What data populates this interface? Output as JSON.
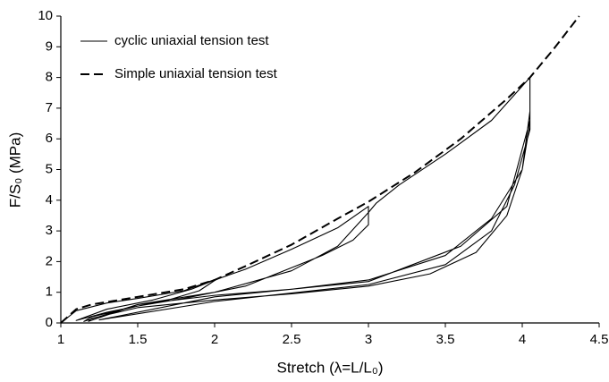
{
  "chart_data": {
    "type": "line",
    "x_label": "Stretch (λ=L/L₀)",
    "y_label": "F/S₀ (MPa)",
    "xlim": [
      1,
      4.5
    ],
    "xticks": [
      1,
      1.5,
      2,
      2.5,
      3,
      3.5,
      4,
      4.5
    ],
    "ylim": [
      0,
      10
    ],
    "yticks": [
      0,
      1,
      2,
      3,
      4,
      5,
      6,
      7,
      8,
      9,
      10
    ],
    "grid": false,
    "legend": "upper left",
    "series": [
      {
        "name": "cyclic uniaxial tension test",
        "color": "#000000",
        "dash": "solid",
        "x": [
          1,
          1.1,
          1.3,
          1.5,
          1.8,
          2.02,
          1.9,
          1.7,
          1.5,
          1.3,
          1.1,
          1.3,
          1.6,
          1.85,
          2.0,
          2.2,
          2.5,
          2.8,
          3.0,
          3.0,
          2.9,
          2.7,
          2.5,
          2.2,
          1.8,
          1.5,
          1.2,
          1.15,
          1.5,
          2.0,
          2.5,
          2.8,
          3.0,
          3.05,
          3.2,
          3.5,
          3.8,
          4.05,
          4.05,
          4.0,
          3.9,
          3.7,
          3.4,
          3.0,
          2.5,
          2.0,
          1.5,
          1.2,
          1.18,
          1.5,
          2.0,
          2.5,
          3.0,
          3.5,
          3.8,
          4.0,
          4.05,
          4.05,
          3.95,
          3.8,
          3.5,
          3.0,
          2.0,
          1.25,
          2.0,
          3.0,
          3.6,
          3.9,
          4.05
        ],
        "values": [
          0,
          0.4,
          0.65,
          0.8,
          1.05,
          1.45,
          1.05,
          0.75,
          0.55,
          0.35,
          0.08,
          0.45,
          0.75,
          1.1,
          1.4,
          1.75,
          2.4,
          3.1,
          3.8,
          3.2,
          2.7,
          2.2,
          1.8,
          1.2,
          0.8,
          0.55,
          0.2,
          0.05,
          0.6,
          1.0,
          1.7,
          2.5,
          3.6,
          3.9,
          4.5,
          5.5,
          6.6,
          8.0,
          6.5,
          5.0,
          3.5,
          2.3,
          1.6,
          1.2,
          0.95,
          0.75,
          0.5,
          0.15,
          0.05,
          0.6,
          0.9,
          1.1,
          1.4,
          2.2,
          3.4,
          5.0,
          6.9,
          6.3,
          4.5,
          3.0,
          1.9,
          1.25,
          0.7,
          0.1,
          0.85,
          1.35,
          2.5,
          3.8,
          6.6
        ]
      },
      {
        "name": "Simple uniaxial tension test",
        "color": "#000000",
        "dash": "dashed",
        "x": [
          1,
          1.1,
          1.2,
          1.5,
          1.8,
          2.0,
          2.2,
          2.5,
          2.8,
          3.0,
          3.3,
          3.6,
          3.9,
          4.05,
          4.2,
          4.37
        ],
        "values": [
          0,
          0.45,
          0.6,
          0.85,
          1.1,
          1.4,
          1.85,
          2.55,
          3.4,
          3.95,
          4.9,
          6.0,
          7.3,
          8.0,
          8.9,
          10
        ]
      }
    ]
  }
}
